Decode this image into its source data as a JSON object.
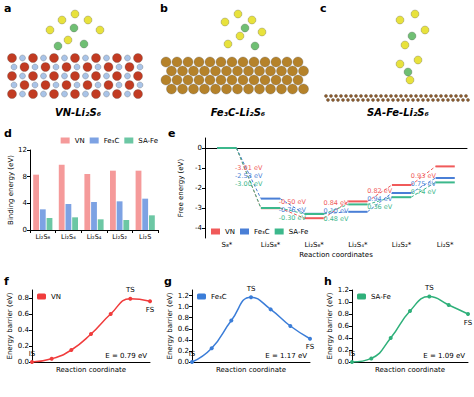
{
  "structures": [
    {
      "panel": "a",
      "label": "VN-Li₂S₆"
    },
    {
      "panel": "b",
      "label": "Fe₃C-Li₂S₆"
    },
    {
      "panel": "c",
      "label": "SA-Fe-Li₂S₆"
    }
  ],
  "chart_data": [
    {
      "panel": "d",
      "type": "bar",
      "categories": [
        "Li₂S₈",
        "Li₂S₆",
        "Li₂S₄",
        "Li₂S₂",
        "Li₂S"
      ],
      "ylabel": "Binding energy (eV)",
      "ylim": [
        0,
        12
      ],
      "yticks": [
        0,
        4,
        8,
        12
      ],
      "legend": "upper right",
      "series": [
        {
          "name": "VN",
          "color": "#f59a9a",
          "values": [
            8.3,
            9.8,
            8.4,
            8.9,
            8.9
          ]
        },
        {
          "name": "Fe₃C",
          "color": "#7da2e3",
          "values": [
            3.1,
            3.9,
            4.2,
            4.3,
            4.7
          ]
        },
        {
          "name": "SA-Fe",
          "color": "#6cc7a4",
          "values": [
            1.8,
            1.9,
            1.6,
            1.5,
            2.2
          ]
        }
      ]
    },
    {
      "panel": "e",
      "type": "step",
      "categories": [
        "S₈*",
        "Li₂S₈*",
        "Li₂S₆*",
        "Li₂S₄*",
        "Li₂S₂*",
        "Li₂S*"
      ],
      "xlabel": "Reaction coordinates",
      "ylabel": "Free energy (eV)",
      "ylim": [
        -4.5,
        0.5
      ],
      "yticks": [
        -4,
        -3,
        -2,
        -1,
        0
      ],
      "legend": "lower left",
      "series": [
        {
          "name": "VN",
          "color": "#f05a5a",
          "values": [
            0,
            -3.01,
            -3.51,
            -2.67,
            -1.85,
            -0.92
          ],
          "annotations": [
            "-3.01 eV",
            "-0.50 eV",
            "0.84 eV",
            "0.82 eV",
            "0.93 eV"
          ]
        },
        {
          "name": "Fe₃C",
          "color": "#4a7fd6",
          "values": [
            0,
            -2.53,
            -3.29,
            -3.19,
            -2.25,
            -1.5
          ],
          "annotations": [
            "-2.53 eV",
            "-0.76 eV",
            "0.10 eV",
            "0.94 eV",
            "0.75 eV"
          ]
        },
        {
          "name": "SA-Fe",
          "color": "#3cb88c",
          "values": [
            0,
            -3.0,
            -3.3,
            -2.82,
            -2.46,
            -1.72
          ],
          "annotations": [
            "-3.00 eV",
            "-0.30 eV",
            "0.48 eV",
            "0.36 eV",
            "0.74 eV"
          ]
        }
      ]
    },
    {
      "panel": "f",
      "type": "line",
      "marker": "circle",
      "x": [
        0,
        1,
        2,
        3,
        4,
        5,
        6
      ],
      "xlim": [
        0,
        6
      ],
      "xlabel": "Reaction coordinate",
      "ylabel": "Energy barrier (eV)",
      "ylim": [
        0,
        0.9
      ],
      "yticks": [
        {
          "value": 0,
          "label": "0.0"
        },
        0.2,
        0.4,
        0.6,
        0.8
      ],
      "tick_labels": "y",
      "legend": "upper left",
      "point_labels": [
        {
          "x": 0,
          "label": "IS"
        },
        {
          "x": 5,
          "label": "TS"
        },
        {
          "x": 6,
          "label": "FS"
        }
      ],
      "annotation": "E = 0.79 eV",
      "series": [
        {
          "name": "VN",
          "color": "#f03c3c",
          "values": [
            0,
            0.04,
            0.15,
            0.35,
            0.6,
            0.79,
            0.76
          ]
        }
      ]
    },
    {
      "panel": "g",
      "type": "line",
      "marker": "circle",
      "x": [
        0,
        1,
        2,
        3,
        4,
        5,
        6
      ],
      "xlim": [
        0,
        6
      ],
      "xlabel": "Reaction coordinate",
      "ylabel": "Energy barrier (eV)",
      "ylim": [
        0,
        1.3
      ],
      "yticks": [
        {
          "value": 0,
          "label": "0.0"
        },
        0.2,
        0.4,
        0.6,
        0.8,
        {
          "value": 1,
          "label": "1.0"
        },
        1.2
      ],
      "tick_labels": "y",
      "legend": "upper left",
      "point_labels": [
        {
          "x": 0,
          "label": "IS"
        },
        {
          "x": 3,
          "label": "TS"
        },
        {
          "x": 6,
          "label": "FS"
        }
      ],
      "annotation": "E = 1.17 eV",
      "series": [
        {
          "name": "Fe₃C",
          "color": "#3b7dd8",
          "values": [
            0,
            0.25,
            0.75,
            1.17,
            0.95,
            0.65,
            0.42
          ]
        }
      ]
    },
    {
      "panel": "h",
      "type": "line",
      "marker": "circle",
      "x": [
        0,
        1,
        2,
        3,
        4,
        5,
        6
      ],
      "xlim": [
        0,
        6
      ],
      "xlabel": "Reaction coordinate",
      "ylabel": "Energy barrier (eV)",
      "ylim": [
        0,
        1.2
      ],
      "yticks": [
        {
          "value": 0,
          "label": "0.0"
        },
        0.2,
        0.4,
        0.6,
        0.8,
        {
          "value": 1,
          "label": "1.0"
        },
        1.2
      ],
      "tick_labels": "y",
      "legend": "upper left",
      "point_labels": [
        {
          "x": 0,
          "label": "IS"
        },
        {
          "x": 4,
          "label": "TS"
        },
        {
          "x": 6,
          "label": "FS"
        }
      ],
      "annotation": "E = 1.09 eV",
      "series": [
        {
          "name": "SA-Fe",
          "color": "#2fb07a",
          "values": [
            0,
            0.06,
            0.4,
            0.85,
            1.09,
            0.95,
            0.8
          ]
        }
      ]
    }
  ]
}
